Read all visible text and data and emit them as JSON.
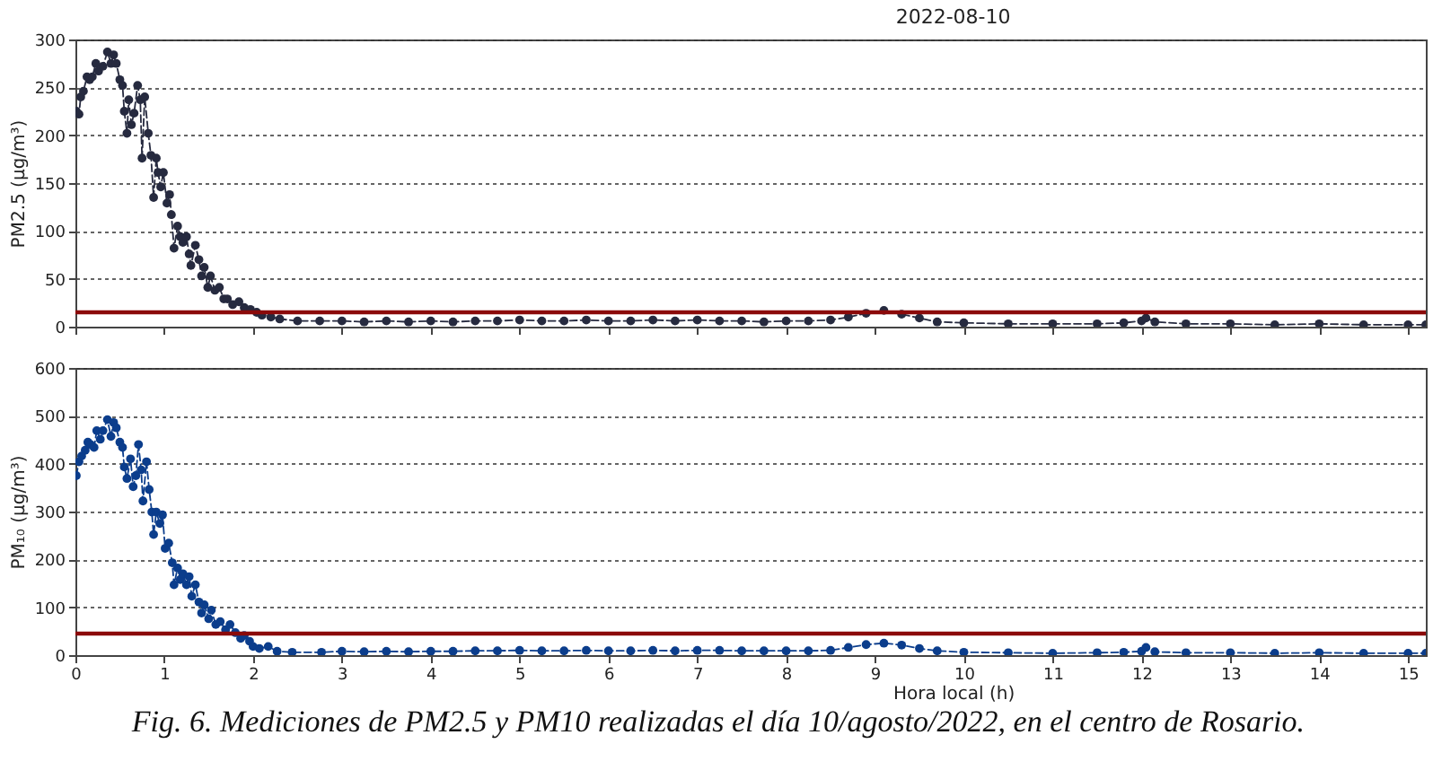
{
  "chart_data": [
    {
      "type": "line",
      "title": "2022-08-10",
      "ylabel": "PM2.5 (μg/m³)",
      "xlim": [
        0,
        15.2
      ],
      "ylim": [
        0,
        300
      ],
      "xticks": [
        0,
        1,
        2,
        3,
        4,
        5,
        6,
        7,
        8,
        9,
        10,
        11,
        12,
        13,
        14,
        15
      ],
      "yticks": [
        0,
        50,
        100,
        150,
        200,
        250,
        300
      ],
      "grid": "y",
      "tick_labels": "y",
      "marker": "circle",
      "line_style": "dashed",
      "x": [
        0.01,
        0.04,
        0.06,
        0.09,
        0.13,
        0.16,
        0.19,
        0.23,
        0.26,
        0.31,
        0.36,
        0.4,
        0.43,
        0.46,
        0.5,
        0.53,
        0.55,
        0.58,
        0.6,
        0.63,
        0.66,
        0.7,
        0.73,
        0.75,
        0.78,
        0.82,
        0.85,
        0.88,
        0.91,
        0.93,
        0.96,
        0.99,
        1.03,
        1.06,
        1.08,
        1.11,
        1.15,
        1.18,
        1.21,
        1.25,
        1.28,
        1.3,
        1.35,
        1.39,
        1.42,
        1.45,
        1.49,
        1.52,
        1.57,
        1.62,
        1.67,
        1.71,
        1.77,
        1.84,
        1.9,
        1.97,
        2.04,
        2.1,
        2.2,
        2.3,
        2.5,
        2.75,
        3.0,
        3.25,
        3.5,
        3.75,
        4.0,
        4.25,
        4.5,
        4.75,
        5.0,
        5.25,
        5.5,
        5.75,
        6.0,
        6.25,
        6.5,
        6.75,
        7.0,
        7.25,
        7.5,
        7.75,
        8.0,
        8.25,
        8.5,
        8.7,
        8.9,
        9.1,
        9.3,
        9.5,
        9.7,
        10.0,
        10.5,
        11.0,
        11.5,
        11.8,
        12.0,
        12.05,
        12.15,
        12.5,
        13.0,
        13.5,
        14.0,
        14.5,
        15.0,
        15.2
      ],
      "series": [
        {
          "color": "#262a3f",
          "values": [
            225,
            222,
            240,
            246,
            261,
            258,
            261,
            275,
            267,
            272,
            287,
            275,
            284,
            275,
            258,
            252,
            225,
            202,
            237,
            211,
            223,
            252,
            237,
            176,
            240,
            202,
            179,
            135,
            176,
            161,
            146,
            161,
            129,
            138,
            117,
            82,
            105,
            94,
            88,
            94,
            76,
            64,
            85,
            70,
            53,
            62,
            41,
            53,
            38,
            41,
            29,
            29,
            23,
            26,
            20,
            18,
            15,
            12,
            10,
            8,
            6,
            6,
            6,
            5,
            6,
            5,
            6,
            5,
            6,
            6,
            7,
            6,
            6,
            7,
            6,
            6,
            7,
            6,
            7,
            6,
            6,
            5,
            6,
            6,
            7,
            10,
            14,
            17,
            13,
            9,
            5,
            4,
            3,
            3,
            3,
            4,
            6,
            9,
            5,
            3,
            3,
            2,
            3,
            2,
            2,
            2
          ]
        }
      ],
      "ref_lines": [
        {
          "axis": "y",
          "value": 15,
          "color": "#8b0a0a"
        }
      ]
    },
    {
      "type": "line",
      "xlabel": "Hora local (h)",
      "ylabel": "PM₁₀ (μg/m³)",
      "xlim": [
        0,
        15.2
      ],
      "ylim": [
        0,
        600
      ],
      "xticks": [
        0,
        1,
        2,
        3,
        4,
        5,
        6,
        7,
        8,
        9,
        10,
        11,
        12,
        13,
        14,
        15
      ],
      "yticks": [
        0,
        100,
        200,
        300,
        400,
        500,
        600
      ],
      "grid": "y",
      "marker": "circle",
      "line_style": "dashed",
      "x": [
        0.01,
        0.04,
        0.07,
        0.11,
        0.14,
        0.17,
        0.21,
        0.24,
        0.28,
        0.31,
        0.36,
        0.4,
        0.43,
        0.46,
        0.5,
        0.53,
        0.55,
        0.58,
        0.62,
        0.65,
        0.68,
        0.71,
        0.74,
        0.76,
        0.8,
        0.83,
        0.86,
        0.88,
        0.91,
        0.95,
        0.98,
        1.01,
        1.05,
        1.09,
        1.11,
        1.15,
        1.18,
        1.21,
        1.25,
        1.28,
        1.31,
        1.35,
        1.39,
        1.42,
        1.45,
        1.5,
        1.53,
        1.58,
        1.63,
        1.69,
        1.74,
        1.8,
        1.86,
        1.9,
        1.96,
        2.0,
        2.07,
        2.17,
        2.27,
        2.44,
        2.77,
        3.0,
        3.25,
        3.5,
        3.75,
        4.0,
        4.25,
        4.5,
        4.75,
        5.0,
        5.25,
        5.5,
        5.75,
        6.0,
        6.25,
        6.5,
        6.75,
        7.0,
        7.25,
        7.5,
        7.75,
        8.0,
        8.25,
        8.5,
        8.7,
        8.9,
        9.1,
        9.3,
        9.5,
        9.7,
        10.0,
        10.5,
        11.0,
        11.5,
        11.8,
        12.0,
        12.05,
        12.15,
        12.5,
        13.0,
        13.5,
        14.0,
        14.5,
        15.0,
        15.2
      ],
      "series": [
        {
          "color": "#0b3d8c",
          "values": [
            375,
            404,
            416,
            428,
            445,
            440,
            434,
            469,
            451,
            469,
            492,
            457,
            486,
            475,
            445,
            434,
            393,
            369,
            410,
            352,
            375,
            440,
            387,
            322,
            404,
            346,
            299,
            252,
            299,
            275,
            293,
            223,
            234,
            193,
            147,
            182,
            158,
            170,
            147,
            164,
            123,
            147,
            111,
            88,
            105,
            76,
            94,
            64,
            70,
            53,
            64,
            47,
            35,
            41,
            29,
            18,
            14,
            18,
            8,
            6,
            6,
            8,
            7,
            8,
            7,
            8,
            8,
            9,
            9,
            10,
            9,
            9,
            10,
            9,
            9,
            10,
            9,
            10,
            10,
            9,
            9,
            9,
            9,
            10,
            16,
            22,
            25,
            21,
            14,
            9,
            6,
            5,
            4,
            5,
            6,
            8,
            16,
            7,
            5,
            5,
            4,
            5,
            4,
            4,
            4
          ]
        }
      ],
      "ref_lines": [
        {
          "axis": "y",
          "value": 45,
          "color": "#8b0a0a"
        }
      ],
      "annotations": [
        "Fig. 6. Mediciones de PM2.5 y PM10 realizadas el día 10/agosto/2022, en el centro de Rosario."
      ]
    }
  ]
}
